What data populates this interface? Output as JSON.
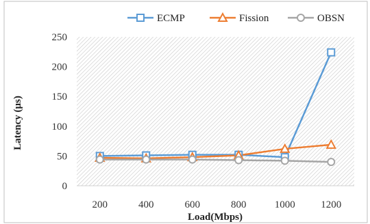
{
  "chart_data": {
    "type": "line",
    "title": "",
    "xlabel": "Load(Mbps)",
    "ylabel": "Latency (μs)",
    "categories": [
      "200",
      "400",
      "600",
      "800",
      "1000",
      "1200"
    ],
    "ylim": [
      0,
      250
    ],
    "yticks": [
      0,
      50,
      100,
      150,
      200,
      250
    ],
    "grid": "hatched plot area",
    "legend": "top-center",
    "series": [
      {
        "name": "ECMP",
        "values": [
          50,
          51,
          52,
          52,
          48,
          224
        ],
        "color": "#5b9bd5",
        "marker": "square"
      },
      {
        "name": "Fission",
        "values": [
          47,
          46,
          48,
          51,
          62,
          69
        ],
        "color": "#ed7d31",
        "marker": "triangle"
      },
      {
        "name": "OBSN",
        "values": [
          44,
          44,
          44,
          43,
          42,
          40
        ],
        "color": "#a5a5a5",
        "marker": "circle"
      }
    ]
  }
}
